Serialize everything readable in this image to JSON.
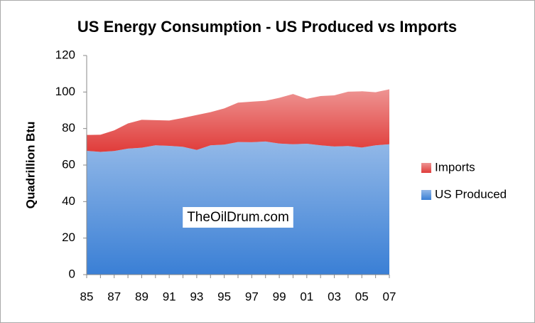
{
  "chart_data": {
    "type": "stacked_area",
    "title": "US Energy Consumption - US Produced vs Imports",
    "y_label": "Quadrillion Btu",
    "annotation": "TheOilDrum.com",
    "categories": [
      "85",
      null,
      "87",
      null,
      "89",
      null,
      "91",
      null,
      "93",
      null,
      "95",
      null,
      "97",
      null,
      "99",
      null,
      "01",
      null,
      "03",
      null,
      "05",
      null,
      "07"
    ],
    "series": [
      {
        "name": "US Produced",
        "color": "#3a7fd5",
        "values": [
          67.8,
          67.2,
          67.7,
          69.0,
          69.5,
          70.8,
          70.5,
          70.0,
          68.3,
          70.8,
          71.2,
          72.6,
          72.5,
          72.9,
          71.8,
          71.4,
          71.7,
          70.8,
          70.2,
          70.4,
          69.6,
          70.8,
          71.4
        ]
      },
      {
        "name": "Imports",
        "color": "#e03c3a",
        "values": [
          8.7,
          9.4,
          11.3,
          13.8,
          15.3,
          13.8,
          13.9,
          15.8,
          19.1,
          18.2,
          19.8,
          21.6,
          22.2,
          22.3,
          25.0,
          27.5,
          24.6,
          27.0,
          28.0,
          29.8,
          30.8,
          29.1,
          30.1
        ]
      }
    ],
    "ylim": [
      0,
      120
    ],
    "yticks": [
      0,
      20,
      40,
      60,
      80,
      100,
      120
    ],
    "grid": false,
    "legend": "right"
  }
}
